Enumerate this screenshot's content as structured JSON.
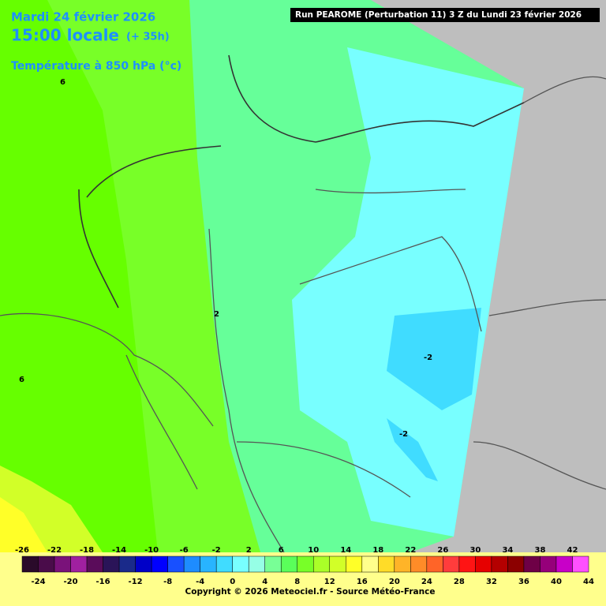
{
  "header": {
    "date": "Mardi 24 février 2026",
    "time": "15:00 locale",
    "lead": "(+ 35h)",
    "run": "Run PEAROME (Perturbation 11) 3 Z du Lundi 23 février 2026",
    "parameter": "Température à 850 hPa (°c)"
  },
  "map": {
    "contour_labels": [
      6,
      2,
      6,
      -2,
      -2
    ]
  },
  "legend": {
    "colors": [
      "#2a0a2a",
      "#4a0c4a",
      "#7a127a",
      "#a020a0",
      "#5a0c5a",
      "#2a1458",
      "#1a2a8a",
      "#0000c8",
      "#0000ff",
      "#1850ff",
      "#1e8cff",
      "#28b4ff",
      "#40dcff",
      "#78ffff",
      "#96ffe6",
      "#78ff96",
      "#5aff5a",
      "#78ff28",
      "#aaff28",
      "#d2ff28",
      "#ffff28",
      "#ffff8c",
      "#ffdc28",
      "#ffb428",
      "#ff8c28",
      "#ff6428",
      "#ff3c3c",
      "#ff1414",
      "#e60000",
      "#b40000",
      "#8c0000",
      "#6e0046",
      "#96007a",
      "#c800c8",
      "#ff50ff"
    ],
    "labels_top": [
      -26,
      -22,
      -18,
      -14,
      -10,
      -6,
      -2,
      2,
      6,
      10,
      14,
      18,
      22,
      26,
      30,
      34,
      38,
      42
    ],
    "labels_bottom": [
      -24,
      -20,
      -16,
      -12,
      -8,
      -4,
      0,
      4,
      8,
      12,
      16,
      20,
      24,
      28,
      32,
      36,
      40,
      44
    ]
  },
  "footer": {
    "copyright": "Copyright © 2026 Meteociel.fr - Source Météo-France"
  }
}
